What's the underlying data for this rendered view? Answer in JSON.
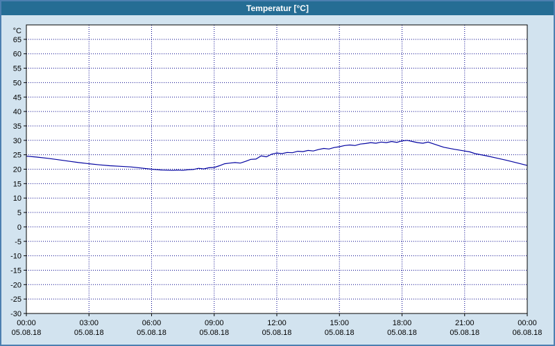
{
  "window": {
    "title": "Temperatur [°C]"
  },
  "colors": {
    "title_bar": "#256d94",
    "window_bg": "#d2e3ef",
    "window_border": "#4c7fb0",
    "plot_bg": "#ffffff",
    "grid": "#00008b",
    "axis": "#000000",
    "series_line": "#0000a0"
  },
  "chart_data": {
    "type": "line",
    "title": "Temperatur [°C]",
    "y_unit_label": "°C",
    "xlabel": "",
    "ylabel": "Temperatur",
    "grid": "dotted",
    "legend": "none",
    "xlim": [
      0,
      24
    ],
    "ylim": [
      -30,
      70
    ],
    "y_ticks": [
      65,
      60,
      55,
      50,
      45,
      40,
      35,
      30,
      25,
      20,
      15,
      10,
      5,
      0,
      -5,
      -10,
      -15,
      -20,
      -25,
      -30
    ],
    "x_ticks": [
      {
        "hour": 0,
        "time": "00:00",
        "date": "05.08.18"
      },
      {
        "hour": 3,
        "time": "03:00",
        "date": "05.08.18"
      },
      {
        "hour": 6,
        "time": "06:00",
        "date": "05.08.18"
      },
      {
        "hour": 9,
        "time": "09:00",
        "date": "05.08.18"
      },
      {
        "hour": 12,
        "time": "12:00",
        "date": "05.08.18"
      },
      {
        "hour": 15,
        "time": "15:00",
        "date": "05.08.18"
      },
      {
        "hour": 18,
        "time": "18:00",
        "date": "05.08.18"
      },
      {
        "hour": 21,
        "time": "21:00",
        "date": "05.08.18"
      },
      {
        "hour": 24,
        "time": "00:00",
        "date": "06.08.18"
      }
    ],
    "series": [
      {
        "name": "Temperatur",
        "unit": "°C",
        "color": "#0000a0",
        "points": [
          [
            0,
            24.5
          ],
          [
            0.5,
            24.2
          ],
          [
            1,
            23.8
          ],
          [
            1.5,
            23.3
          ],
          [
            2,
            22.8
          ],
          [
            2.5,
            22.3
          ],
          [
            3,
            21.9
          ],
          [
            3.5,
            21.5
          ],
          [
            4,
            21.2
          ],
          [
            4.5,
            21.0
          ],
          [
            5,
            20.8
          ],
          [
            5.5,
            20.4
          ],
          [
            6,
            20.0
          ],
          [
            6.5,
            19.7
          ],
          [
            7,
            19.6
          ],
          [
            7.25,
            19.7
          ],
          [
            7.5,
            19.6
          ],
          [
            7.75,
            19.8
          ],
          [
            8,
            19.9
          ],
          [
            8.25,
            20.3
          ],
          [
            8.5,
            20.1
          ],
          [
            8.75,
            20.5
          ],
          [
            9,
            20.6
          ],
          [
            9.25,
            21.2
          ],
          [
            9.5,
            21.9
          ],
          [
            9.75,
            22.1
          ],
          [
            10,
            22.3
          ],
          [
            10.25,
            22.1
          ],
          [
            10.5,
            22.7
          ],
          [
            10.75,
            23.4
          ],
          [
            11,
            23.5
          ],
          [
            11.25,
            24.6
          ],
          [
            11.5,
            24.3
          ],
          [
            11.75,
            25.2
          ],
          [
            12,
            25.6
          ],
          [
            12.25,
            25.4
          ],
          [
            12.5,
            25.8
          ],
          [
            12.75,
            25.7
          ],
          [
            13,
            26.2
          ],
          [
            13.25,
            26.1
          ],
          [
            13.5,
            26.5
          ],
          [
            13.75,
            26.3
          ],
          [
            14,
            26.8
          ],
          [
            14.25,
            27.2
          ],
          [
            14.5,
            27.0
          ],
          [
            14.75,
            27.5
          ],
          [
            15,
            27.8
          ],
          [
            15.25,
            28.2
          ],
          [
            15.5,
            28.4
          ],
          [
            15.75,
            28.2
          ],
          [
            16,
            28.7
          ],
          [
            16.25,
            28.9
          ],
          [
            16.5,
            29.2
          ],
          [
            16.75,
            29.0
          ],
          [
            17,
            29.4
          ],
          [
            17.25,
            29.2
          ],
          [
            17.5,
            29.6
          ],
          [
            17.75,
            29.3
          ],
          [
            18,
            29.8
          ],
          [
            18.25,
            30.0
          ],
          [
            18.5,
            29.6
          ],
          [
            18.75,
            29.2
          ],
          [
            19,
            29.0
          ],
          [
            19.25,
            29.4
          ],
          [
            19.5,
            28.8
          ],
          [
            19.75,
            28.2
          ],
          [
            20,
            27.6
          ],
          [
            20.5,
            26.9
          ],
          [
            21,
            26.3
          ],
          [
            21.25,
            26.0
          ],
          [
            21.5,
            25.4
          ],
          [
            22,
            24.7
          ],
          [
            22.5,
            23.9
          ],
          [
            23,
            23.1
          ],
          [
            23.5,
            22.2
          ],
          [
            24,
            21.3
          ]
        ]
      }
    ]
  }
}
